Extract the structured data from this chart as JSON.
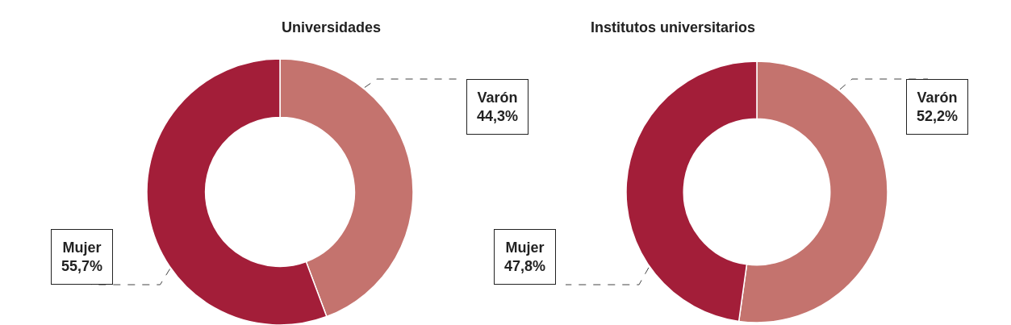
{
  "chart_data": [
    {
      "type": "donut",
      "title": "Universidades",
      "categories": [
        "Varón",
        "Mujer"
      ],
      "values": [
        44.3,
        55.7
      ],
      "colors": [
        "#c4736e",
        "#a31e39"
      ],
      "value_labels": [
        "44,3%",
        "55,7%"
      ]
    },
    {
      "type": "donut",
      "title": "Institutos universitarios",
      "categories": [
        "Varón",
        "Mujer"
      ],
      "values": [
        52.2,
        47.8
      ],
      "colors": [
        "#c4736e",
        "#a31e39"
      ],
      "value_labels": [
        "52,2%",
        "47,8%"
      ]
    }
  ]
}
